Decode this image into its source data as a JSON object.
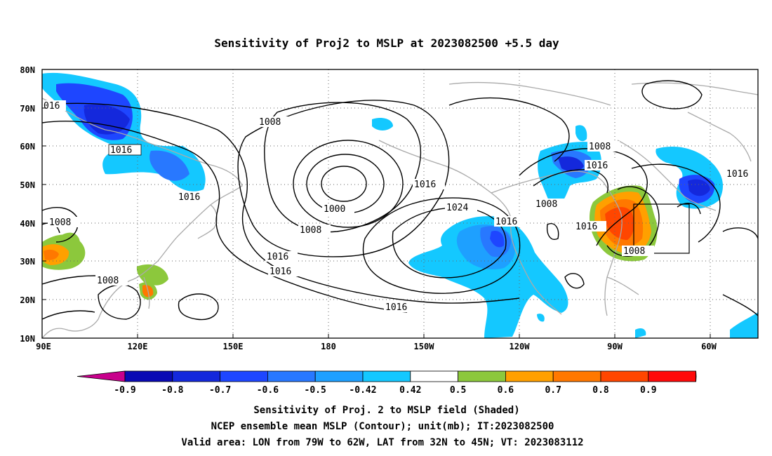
{
  "title": "Sensitivity of Proj2 to MSLP at 2023082500 +5.5 day",
  "captions": [
    "Sensitivity of Proj. 2 to MSLP field (Shaded)",
    "NCEP ensemble mean MSLP (Contour); unit(mb); IT:2023082500",
    "Valid area: LON from 79W to 62W, LAT from 32N to 45N; VT: 2023083112"
  ],
  "lat_labels": [
    "80N",
    "70N",
    "60N",
    "50N",
    "40N",
    "30N",
    "20N",
    "10N"
  ],
  "lon_labels": [
    "90E",
    "120E",
    "150E",
    "180",
    "150W",
    "120W",
    "90W",
    "60W"
  ],
  "colorbar": {
    "labels": [
      "-0.9",
      "-0.8",
      "-0.7",
      "-0.6",
      "-0.5",
      "-0.42",
      "0.42",
      "0.5",
      "0.6",
      "0.7",
      "0.8",
      "0.9"
    ],
    "colors": [
      "#c8008c",
      "#0a0ab4",
      "#1428dc",
      "#1e46ff",
      "#2878ff",
      "#1ea0ff",
      "#14c8ff",
      "#ffffff",
      "#8cc83c",
      "#ffa000",
      "#ff7800",
      "#ff4600",
      "#ff0a0a",
      "#ff96c8"
    ]
  },
  "contour_labels": [
    "016",
    "1008",
    "1016",
    "1016",
    "1008",
    "1000",
    "1008",
    "1016",
    "1016",
    "1016",
    "1024",
    "1016",
    "1016",
    "1008",
    "1008",
    "1016",
    "1016",
    "1008",
    "1016",
    "1008",
    "1008"
  ],
  "chart_data": {
    "type": "map",
    "projection": "cylindrical equidistant",
    "lon_range": [
      "90E",
      "60W"
    ],
    "lat_range": [
      "10N",
      "80N"
    ],
    "grid": true,
    "shaded_field": "Sensitivity of Proj. 2 to MSLP",
    "contour_field": "NCEP ensemble mean MSLP (mb)",
    "contour_levels": [
      1000,
      1008,
      1016,
      1024
    ],
    "valid_box": {
      "lon": [
        "79W",
        "62W"
      ],
      "lat": [
        "32N",
        "45N"
      ]
    }
  }
}
